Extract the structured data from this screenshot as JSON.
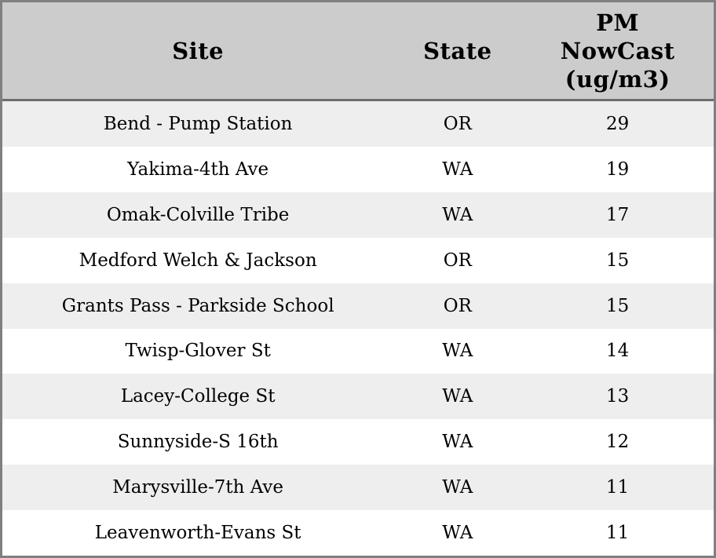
{
  "table": {
    "headers": {
      "site": "Site",
      "state": "State",
      "pm": "PM NowCast (ug/m3)"
    },
    "rows": [
      {
        "site": "Bend - Pump Station",
        "state": "OR",
        "pm": "29"
      },
      {
        "site": "Yakima-4th Ave",
        "state": "WA",
        "pm": "19"
      },
      {
        "site": "Omak-Colville Tribe",
        "state": "WA",
        "pm": "17"
      },
      {
        "site": "Medford Welch & Jackson",
        "state": "OR",
        "pm": "15"
      },
      {
        "site": "Grants Pass - Parkside School",
        "state": "OR",
        "pm": "15"
      },
      {
        "site": "Twisp-Glover St",
        "state": "WA",
        "pm": "14"
      },
      {
        "site": "Lacey-College St",
        "state": "WA",
        "pm": "13"
      },
      {
        "site": "Sunnyside-S 16th",
        "state": "WA",
        "pm": "12"
      },
      {
        "site": "Marysville-7th Ave",
        "state": "WA",
        "pm": "11"
      },
      {
        "site": "Leavenworth-Evans St",
        "state": "WA",
        "pm": "11"
      }
    ],
    "colors": {
      "header_bg": "#cccccc",
      "row_alt_bg": "#eeeeee",
      "row_bg": "#ffffff",
      "outer_border": "#808080",
      "header_separator": "#6e6e6e",
      "text": "#000000"
    }
  },
  "chart_data": {
    "type": "table",
    "title": "",
    "columns": [
      "Site",
      "State",
      "PM NowCast (ug/m3)"
    ],
    "rows": [
      [
        "Bend - Pump Station",
        "OR",
        29
      ],
      [
        "Yakima-4th Ave",
        "WA",
        19
      ],
      [
        "Omak-Colville Tribe",
        "WA",
        17
      ],
      [
        "Medford Welch & Jackson",
        "OR",
        15
      ],
      [
        "Grants Pass - Parkside School",
        "OR",
        15
      ],
      [
        "Twisp-Glover St",
        "WA",
        14
      ],
      [
        "Lacey-College St",
        "WA",
        13
      ],
      [
        "Sunnyside-S 16th",
        "WA",
        12
      ],
      [
        "Marysville-7th Ave",
        "WA",
        11
      ],
      [
        "Leavenworth-Evans St",
        "WA",
        11
      ]
    ]
  }
}
